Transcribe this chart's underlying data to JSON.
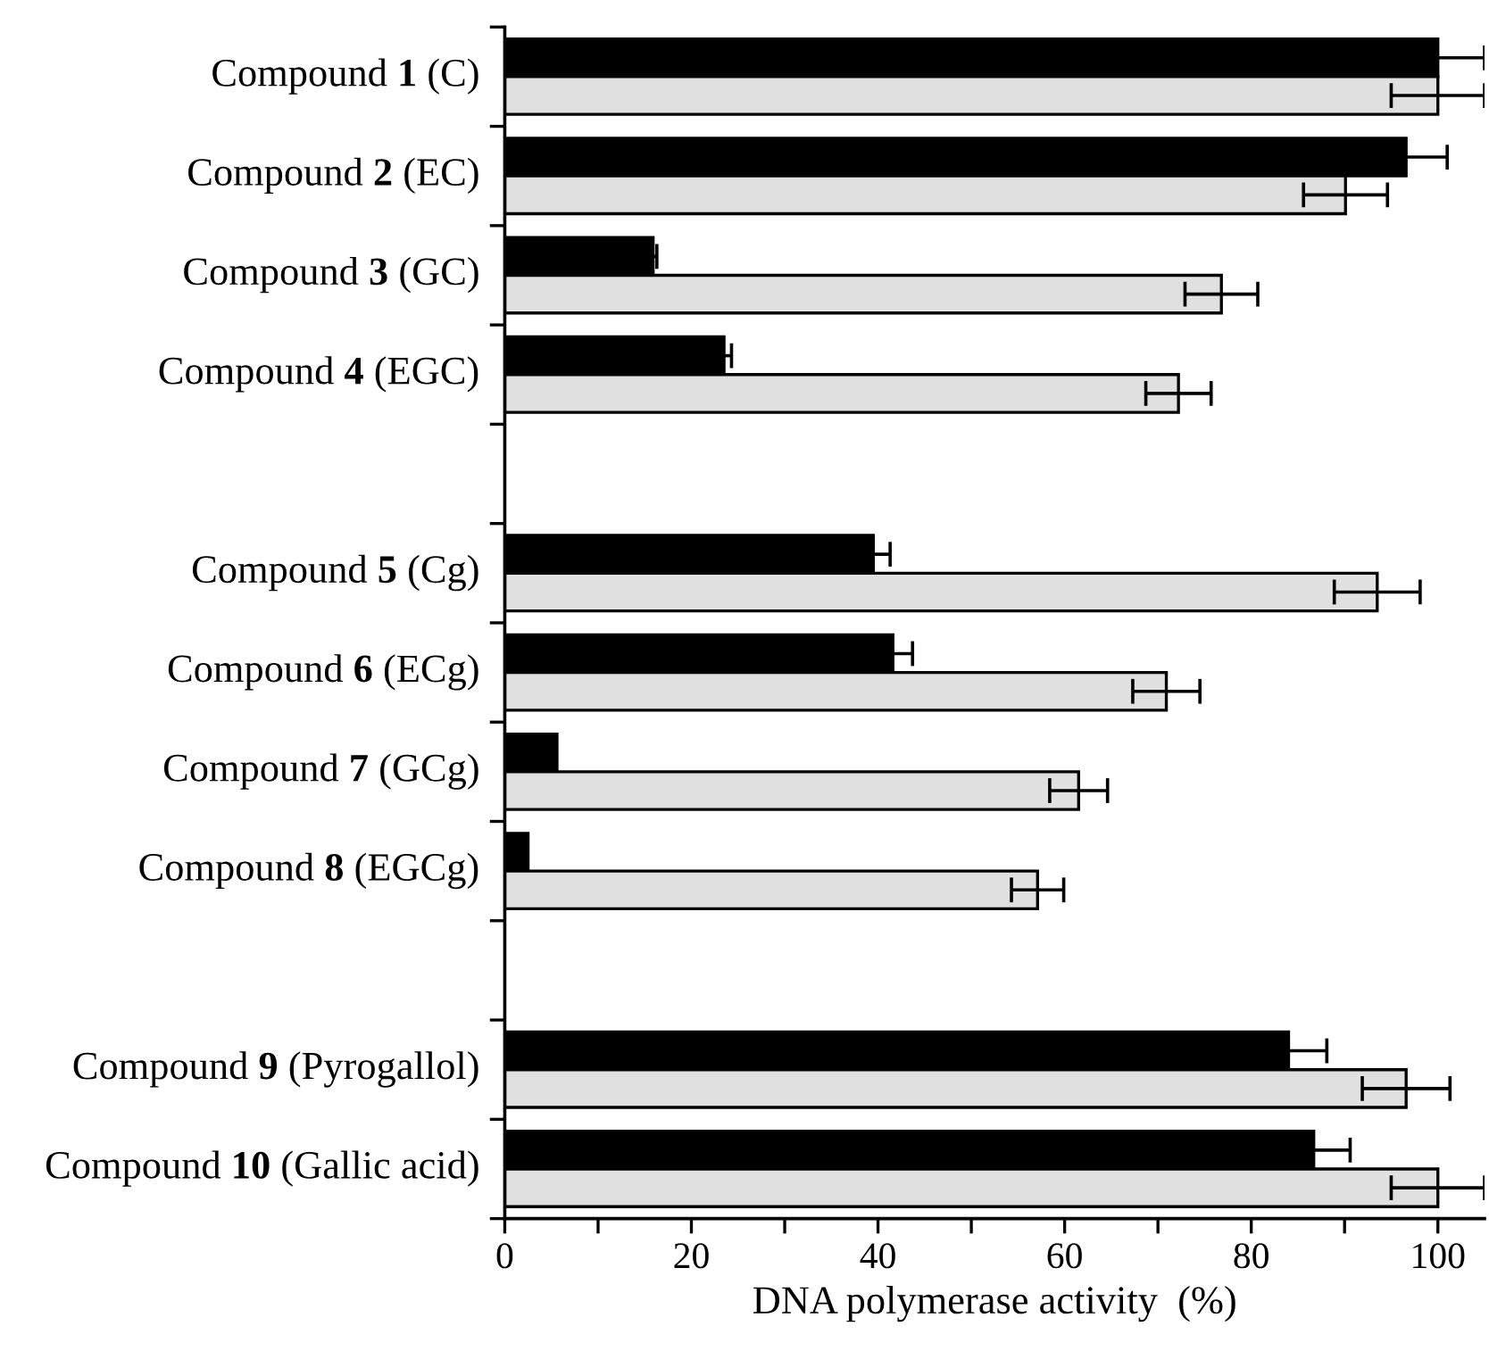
{
  "chart_data": {
    "type": "bar",
    "orientation": "horizontal",
    "xlabel": "DNA polymerase activity  (%)",
    "categories": [
      "Compound 1 (C)",
      "Compound 2 (EC)",
      "Compound 3 (GC)",
      "Compound 4 (EGC)",
      null,
      "Compound 5 (Cg)",
      "Compound 6 (ECg)",
      "Compound 7 (GCg)",
      "Compound 8 (EGCg)",
      null,
      "Compound 9 (Pyrogallol)",
      "Compound 10 (Gallic acid)"
    ],
    "series": [
      {
        "color": "#000000",
        "values": [
          100,
          96.6,
          15.9,
          23.5,
          null,
          39.5,
          41.6,
          5.6,
          2.5,
          null,
          84.0,
          86.7
        ],
        "errors": [
          5,
          4.4,
          0.4,
          0.8,
          null,
          1.8,
          2.1,
          null,
          null,
          null,
          4.1,
          3.9
        ]
      },
      {
        "color": "#e0e0e0",
        "values": [
          100,
          90.1,
          76.8,
          72.2,
          null,
          93.5,
          70.9,
          61.5,
          57.1,
          null,
          96.6,
          100
        ],
        "errors": [
          5,
          4.5,
          3.9,
          3.5,
          null,
          4.6,
          3.6,
          3.1,
          2.8,
          null,
          4.7,
          5
        ]
      }
    ],
    "xlim": [
      0,
      105
    ],
    "xticks": [
      0,
      {
        "value": 10,
        "label": null
      },
      20,
      {
        "value": 30,
        "label": null
      },
      40,
      {
        "value": 50,
        "label": null
      },
      60,
      {
        "value": 70,
        "label": null
      },
      80,
      {
        "value": 90,
        "label": null
      },
      100
    ],
    "grid": false,
    "legend": false
  }
}
